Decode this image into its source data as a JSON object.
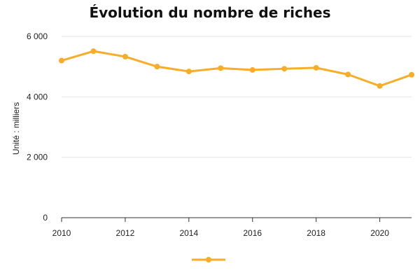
{
  "chart_data": {
    "type": "line",
    "title": "Évolution du nombre de riches",
    "xlabel": "",
    "ylabel": "Unité : milliers",
    "x": [
      2010,
      2011,
      2012,
      2013,
      2014,
      2015,
      2016,
      2017,
      2018,
      2019,
      2020,
      2021
    ],
    "series": [
      {
        "name": "",
        "values": [
          5200,
          5510,
          5330,
          5000,
          4840,
          4950,
          4890,
          4930,
          4960,
          4740,
          4360,
          4730
        ]
      }
    ],
    "xlim": [
      2010,
      2021
    ],
    "ylim": [
      0,
      6000
    ],
    "xticks": [
      {
        "value": 2010,
        "label": "2010"
      },
      {
        "value": 2012,
        "label": "2012"
      },
      {
        "value": 2014,
        "label": "2014"
      },
      {
        "value": 2016,
        "label": "2016"
      },
      {
        "value": 2018,
        "label": "2018"
      },
      {
        "value": 2020,
        "label": "2020"
      }
    ],
    "yticks": [
      {
        "value": 0,
        "label": "0"
      },
      {
        "value": 2000,
        "label": "2 000"
      },
      {
        "value": 4000,
        "label": "4 000"
      },
      {
        "value": 6000,
        "label": "6 000"
      }
    ],
    "grid": true,
    "legend_position": "bottom-center",
    "colors": {
      "series": "#F7AD2A",
      "grid": "#e6e6e6",
      "axis": "#333333"
    }
  }
}
